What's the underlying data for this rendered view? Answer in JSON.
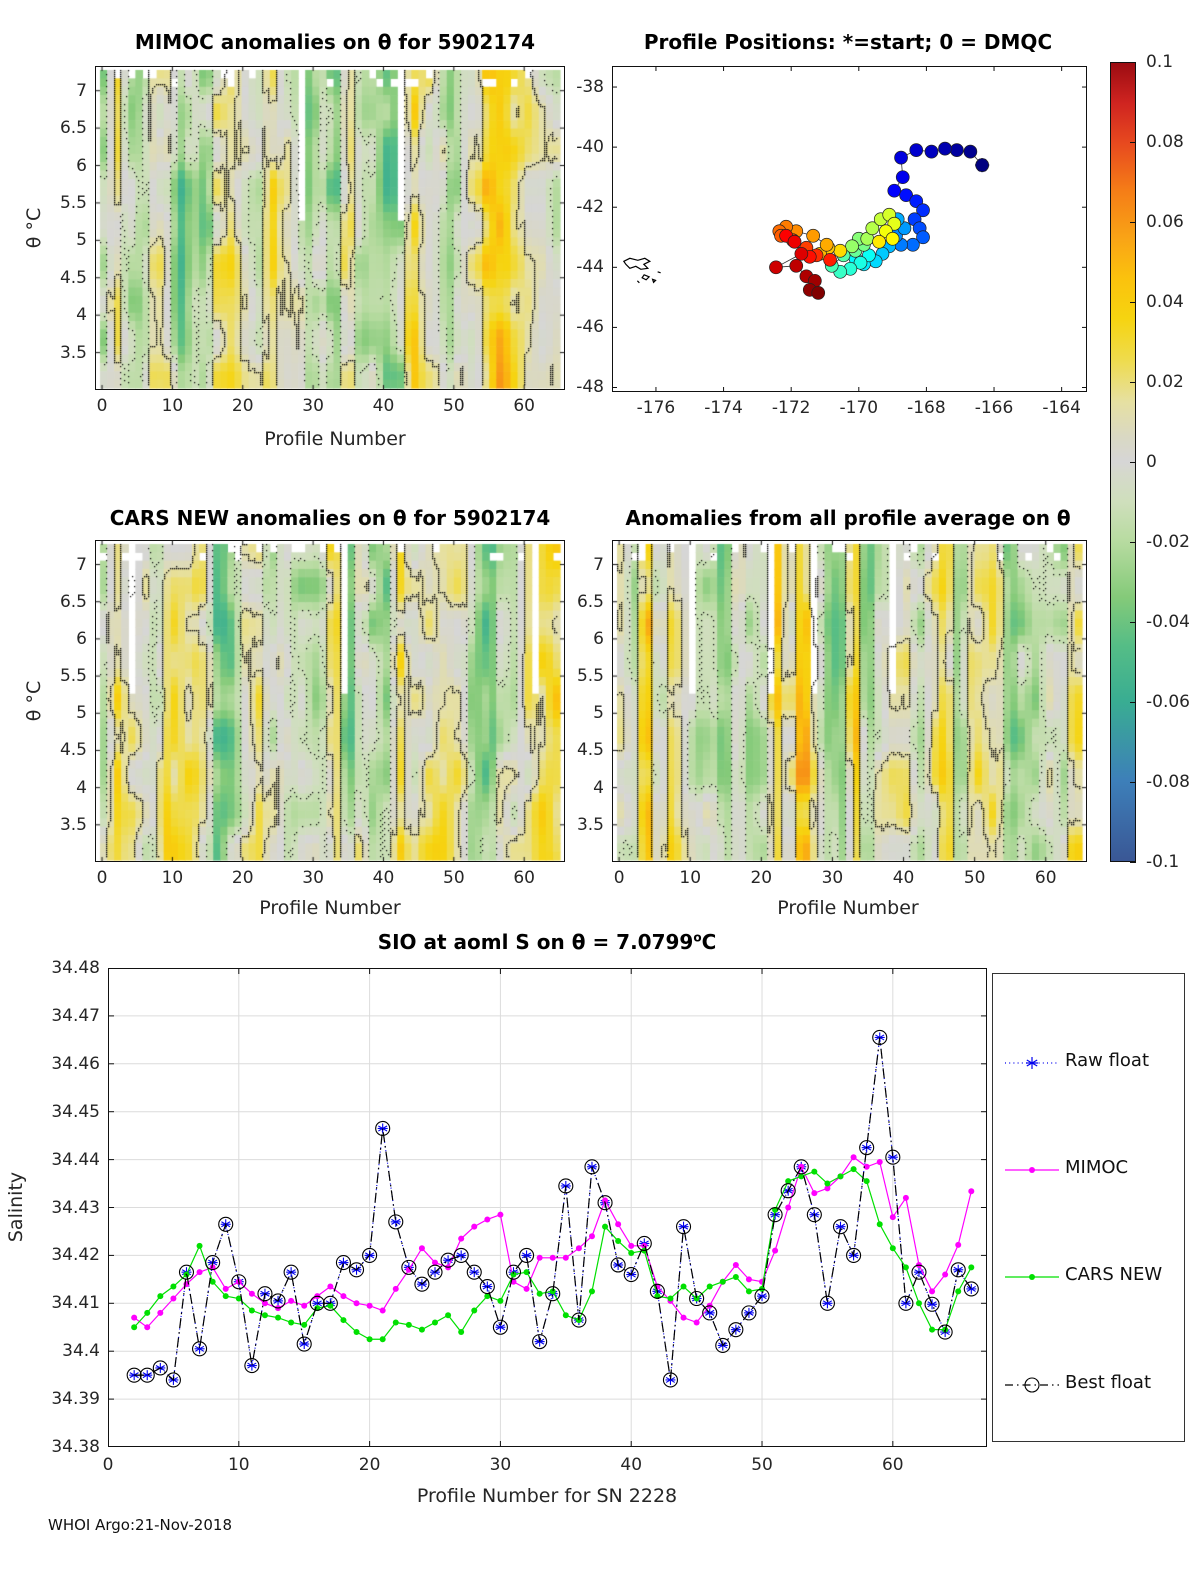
{
  "figure": {
    "footer_text": "WHOI Argo:21-Nov-2018",
    "colors": {
      "background": "#ffffff",
      "axis_line": "#111111",
      "tick_text": "#262626",
      "grid": "#dcdcdc",
      "raw_float": "#0000ee",
      "mimoc": "#ff00ff",
      "cars_new": "#00e000",
      "best_float": "#000000",
      "start_marker": "#00008b",
      "trajectory_line": "#333333"
    }
  },
  "colorbar": {
    "ticks": [
      "0.1",
      "0.08",
      "0.06",
      "0.04",
      "0.02",
      "0",
      "-0.02",
      "-0.04",
      "-0.06",
      "-0.08",
      "-0.1"
    ],
    "value_range": [
      -0.1,
      0.1
    ],
    "stops": [
      [
        0.0,
        "#3a5795"
      ],
      [
        0.1,
        "#3d7fb9"
      ],
      [
        0.2,
        "#39ad92"
      ],
      [
        0.27,
        "#55bd86"
      ],
      [
        0.33,
        "#84ca79"
      ],
      [
        0.4,
        "#b7dba0"
      ],
      [
        0.45,
        "#cfdfbc"
      ],
      [
        0.485,
        "#d5d9cb"
      ],
      [
        0.5,
        "#d6d6d6"
      ],
      [
        0.53,
        "#d9d8c4"
      ],
      [
        0.575,
        "#e6e0a2"
      ],
      [
        0.63,
        "#efdb4a"
      ],
      [
        0.68,
        "#f6d410"
      ],
      [
        0.73,
        "#fbc20d"
      ],
      [
        0.78,
        "#f9a416"
      ],
      [
        0.84,
        "#f57d17"
      ],
      [
        0.9,
        "#e7491f"
      ],
      [
        0.95,
        "#cf2420"
      ],
      [
        1.0,
        "#9c0c12"
      ]
    ]
  },
  "chart_data": [
    {
      "id": "mimoc_heatmap",
      "type": "heatmap",
      "title": "MIMOC anomalies on θ  for 5902174",
      "xlabel": "Profile Number",
      "ylabel": "θ °C",
      "xticks": [
        "0",
        "10",
        "20",
        "30",
        "40",
        "50",
        "60"
      ],
      "yticks": [
        "7",
        "6.5",
        "6",
        "5.5",
        "5",
        "4.5",
        "4",
        "3.5"
      ],
      "xlim": [
        -1,
        65.8
      ],
      "ylim": [
        3.0,
        7.33
      ],
      "value_range": [
        -0.1,
        0.1
      ],
      "contour_levels": {
        "solid": 0.012,
        "dotted": -0.012
      },
      "description": "Salinity anomaly vs MIMOC climatology per profile and potential temperature; mostly gray/yellow/orange streaks between -0.05 and +0.06"
    },
    {
      "id": "profile_positions",
      "type": "scatter",
      "title": "Profile Positions: *=start; 0 = DMQC",
      "xticks": [
        "-176",
        "-174",
        "-172",
        "-170",
        "-168",
        "-166",
        "-164"
      ],
      "yticks": [
        "-38",
        "-40",
        "-42",
        "-44",
        "-46",
        "-48"
      ],
      "xlim": [
        -177.3,
        -163.25
      ],
      "ylim": [
        -48.15,
        -37.3
      ],
      "colormap": "jet",
      "start_point": [
        -166.35,
        -40.6
      ],
      "points": [
        [
          -166.35,
          -40.6
        ],
        [
          -166.7,
          -40.15
        ],
        [
          -167.1,
          -40.1
        ],
        [
          -167.45,
          -40.05
        ],
        [
          -167.85,
          -40.15
        ],
        [
          -168.3,
          -40.1
        ],
        [
          -168.75,
          -40.35
        ],
        [
          -168.7,
          -41.0
        ],
        [
          -168.95,
          -41.45
        ],
        [
          -168.6,
          -41.6
        ],
        [
          -168.3,
          -41.8
        ],
        [
          -168.1,
          -42.1
        ],
        [
          -168.35,
          -42.4
        ],
        [
          -168.2,
          -42.7
        ],
        [
          -168.1,
          -43.0
        ],
        [
          -168.4,
          -43.25
        ],
        [
          -168.75,
          -43.25
        ],
        [
          -168.9,
          -42.95
        ],
        [
          -168.65,
          -42.7
        ],
        [
          -168.85,
          -42.4
        ],
        [
          -169.1,
          -43.3
        ],
        [
          -169.3,
          -43.55
        ],
        [
          -169.5,
          -43.8
        ],
        [
          -169.85,
          -43.9
        ],
        [
          -170.1,
          -43.7
        ],
        [
          -169.7,
          -43.6
        ],
        [
          -169.95,
          -43.85
        ],
        [
          -170.25,
          -44.05
        ],
        [
          -170.55,
          -44.15
        ],
        [
          -170.8,
          -43.95
        ],
        [
          -170.45,
          -43.6
        ],
        [
          -170.1,
          -43.45
        ],
        [
          -169.85,
          -43.25
        ],
        [
          -170.0,
          -43.05
        ],
        [
          -170.2,
          -43.3
        ],
        [
          -169.75,
          -43.05
        ],
        [
          -169.6,
          -42.7
        ],
        [
          -169.35,
          -42.4
        ],
        [
          -169.1,
          -42.25
        ],
        [
          -168.95,
          -42.55
        ],
        [
          -169.2,
          -42.8
        ],
        [
          -169.0,
          -43.05
        ],
        [
          -169.4,
          -43.15
        ],
        [
          -170.55,
          -43.45
        ],
        [
          -170.9,
          -43.35
        ],
        [
          -171.15,
          -43.55
        ],
        [
          -170.95,
          -43.25
        ],
        [
          -171.35,
          -42.95
        ],
        [
          -171.85,
          -42.8
        ],
        [
          -172.15,
          -42.65
        ],
        [
          -172.35,
          -42.8
        ],
        [
          -172.3,
          -42.95
        ],
        [
          -171.95,
          -43.1
        ],
        [
          -171.55,
          -43.35
        ],
        [
          -171.25,
          -43.6
        ],
        [
          -170.85,
          -43.75
        ],
        [
          -171.45,
          -43.65
        ],
        [
          -172.15,
          -42.95
        ],
        [
          -171.9,
          -43.15
        ],
        [
          -171.7,
          -43.55
        ],
        [
          -172.45,
          -44.0
        ],
        [
          -171.85,
          -43.95
        ],
        [
          -171.55,
          -44.3
        ],
        [
          -171.3,
          -44.45
        ],
        [
          -171.45,
          -44.75
        ],
        [
          -171.2,
          -44.85
        ]
      ]
    },
    {
      "id": "cars_heatmap",
      "type": "heatmap",
      "title": "CARS NEW anomalies on θ for 5902174",
      "xlabel": "Profile Number",
      "ylabel": "θ °C",
      "xticks": [
        "0",
        "10",
        "20",
        "30",
        "40",
        "50",
        "60"
      ],
      "yticks": [
        "7",
        "6.5",
        "6",
        "5.5",
        "5",
        "4.5",
        "4",
        "3.5"
      ],
      "xlim": [
        -1,
        65.8
      ],
      "ylim": [
        3.0,
        7.33
      ],
      "value_range": [
        -0.1,
        0.1
      ],
      "contour_levels": {
        "solid": 0.012,
        "dotted": -0.012
      },
      "description": "Salinity anomaly vs CARS NEW climatology; strong yellow/orange streaks left-center and far right, green band near profiles 50-60"
    },
    {
      "id": "allprofile_heatmap",
      "type": "heatmap",
      "title": "Anomalies from all profile average on θ",
      "xlabel": "Profile Number",
      "ylabel": "θ °C",
      "xticks": [
        "0",
        "10",
        "20",
        "30",
        "40",
        "50",
        "60"
      ],
      "yticks": [
        "7",
        "6.5",
        "6",
        "5.5",
        "5",
        "4.5",
        "4",
        "3.5"
      ],
      "xlim": [
        -1,
        65.8
      ],
      "ylim": [
        3.0,
        7.33
      ],
      "value_range": [
        -0.1,
        0.1
      ],
      "contour_levels": {
        "solid": 0.012,
        "dotted": -0.012
      },
      "description": "Salinity anomaly from the all-profile average; green band at left, gray center, orange streaks at right"
    },
    {
      "id": "salinity_series",
      "type": "line",
      "title_pre": "SIO at aoml S on θ = 7.0799",
      "title_sup": "o",
      "title_post": "C",
      "xlabel": "Profile Number for SN 2228",
      "ylabel": "Salinity",
      "xticks": [
        "0",
        "10",
        "20",
        "30",
        "40",
        "50",
        "60"
      ],
      "yticks": [
        "34.48",
        "34.47",
        "34.46",
        "34.45",
        "34.44",
        "34.43",
        "34.42",
        "34.41",
        "34.4",
        "34.39",
        "34.38"
      ],
      "xlim": [
        0,
        67.2
      ],
      "ylim": [
        34.38,
        34.48
      ],
      "grid": true,
      "legend_position": "right-outside",
      "x": [
        2,
        3,
        4,
        5,
        6,
        7,
        8,
        9,
        10,
        11,
        12,
        13,
        14,
        15,
        16,
        17,
        18,
        19,
        20,
        21,
        22,
        23,
        24,
        25,
        26,
        27,
        28,
        29,
        30,
        31,
        32,
        33,
        34,
        35,
        36,
        37,
        38,
        39,
        40,
        41,
        42,
        43,
        44,
        45,
        46,
        47,
        48,
        49,
        50,
        51,
        52,
        53,
        54,
        55,
        56,
        57,
        58,
        59,
        60,
        61,
        62,
        63,
        64,
        65,
        66
      ],
      "series": [
        {
          "name": "Raw float",
          "color_key": "raw_float",
          "line": "dotted",
          "marker": "asterisk",
          "values": [
            34.395,
            34.395,
            34.3965,
            34.394,
            34.4165,
            34.4005,
            34.4185,
            34.4265,
            34.4145,
            34.397,
            34.412,
            34.4105,
            34.4165,
            34.4015,
            34.41,
            34.41,
            34.4185,
            34.417,
            34.42,
            34.4465,
            34.427,
            34.4175,
            34.414,
            34.4165,
            34.419,
            34.42,
            34.4165,
            34.4135,
            34.405,
            34.4165,
            34.42,
            34.402,
            34.412,
            34.4345,
            34.4065,
            34.4385,
            34.431,
            34.418,
            34.416,
            34.4225,
            34.4125,
            34.394,
            34.426,
            34.411,
            34.408,
            34.4012,
            34.4045,
            34.408,
            34.4115,
            34.4285,
            34.4335,
            34.4385,
            34.4285,
            34.41,
            34.426,
            34.42,
            34.4425,
            34.4655,
            34.4405,
            34.41,
            34.4165,
            34.4098,
            34.404,
            34.417,
            34.413
          ]
        },
        {
          "name": "MIMOC",
          "color_key": "mimoc",
          "line": "solid",
          "marker": "dot",
          "values": [
            34.407,
            34.405,
            34.408,
            34.411,
            34.414,
            34.4165,
            34.4175,
            34.413,
            34.4145,
            34.412,
            34.41,
            34.409,
            34.4105,
            34.4095,
            34.4115,
            34.4135,
            34.4115,
            34.41,
            34.4095,
            34.4085,
            34.413,
            34.417,
            34.4215,
            34.4185,
            34.4175,
            34.4235,
            34.426,
            34.4275,
            34.4285,
            34.4145,
            34.413,
            34.4195,
            34.4195,
            34.4195,
            34.4215,
            34.424,
            34.4315,
            34.4265,
            34.422,
            34.422,
            34.4135,
            34.4105,
            34.407,
            34.406,
            34.4095,
            34.4145,
            34.418,
            34.415,
            34.4145,
            34.421,
            34.43,
            34.4385,
            34.433,
            34.434,
            34.4365,
            34.4405,
            34.4385,
            34.4395,
            34.428,
            34.432,
            34.418,
            34.4125,
            34.416,
            34.4222,
            34.4334
          ]
        },
        {
          "name": "CARS NEW",
          "color_key": "cars_new",
          "line": "solid",
          "marker": "dot",
          "values": [
            34.405,
            34.408,
            34.4115,
            34.4135,
            34.416,
            34.422,
            34.4145,
            34.4115,
            34.411,
            34.4085,
            34.4075,
            34.407,
            34.406,
            34.4055,
            34.409,
            34.4095,
            34.4065,
            34.404,
            34.4025,
            34.4025,
            34.406,
            34.4055,
            34.4045,
            34.406,
            34.4075,
            34.404,
            34.4085,
            34.4115,
            34.4105,
            34.416,
            34.4165,
            34.412,
            34.4125,
            34.4075,
            34.4065,
            34.4125,
            34.426,
            34.423,
            34.4205,
            34.421,
            34.4115,
            34.411,
            34.4135,
            34.411,
            34.4135,
            34.4145,
            34.4155,
            34.4125,
            34.413,
            34.4295,
            34.4355,
            34.4365,
            34.4375,
            34.435,
            34.4365,
            34.438,
            34.4355,
            34.4265,
            34.4215,
            34.4175,
            34.41,
            34.4045,
            34.4045,
            34.4125,
            34.4175
          ]
        },
        {
          "name": "Best float",
          "color_key": "best_float",
          "line": "dashdot",
          "marker": "circle",
          "values": [
            34.395,
            34.395,
            34.3965,
            34.394,
            34.4165,
            34.4005,
            34.4185,
            34.4265,
            34.4145,
            34.397,
            34.412,
            34.4105,
            34.4165,
            34.4015,
            34.41,
            34.41,
            34.4185,
            34.417,
            34.42,
            34.4465,
            34.427,
            34.4175,
            34.414,
            34.4165,
            34.419,
            34.42,
            34.4165,
            34.4135,
            34.405,
            34.4165,
            34.42,
            34.402,
            34.412,
            34.4345,
            34.4065,
            34.4385,
            34.431,
            34.418,
            34.416,
            34.4225,
            34.4125,
            34.394,
            34.426,
            34.411,
            34.408,
            34.4012,
            34.4045,
            34.408,
            34.4115,
            34.4285,
            34.4335,
            34.4385,
            34.4285,
            34.41,
            34.426,
            34.42,
            34.4425,
            34.4655,
            34.4405,
            34.41,
            34.4165,
            34.4098,
            34.404,
            34.417,
            34.413
          ]
        }
      ]
    }
  ]
}
